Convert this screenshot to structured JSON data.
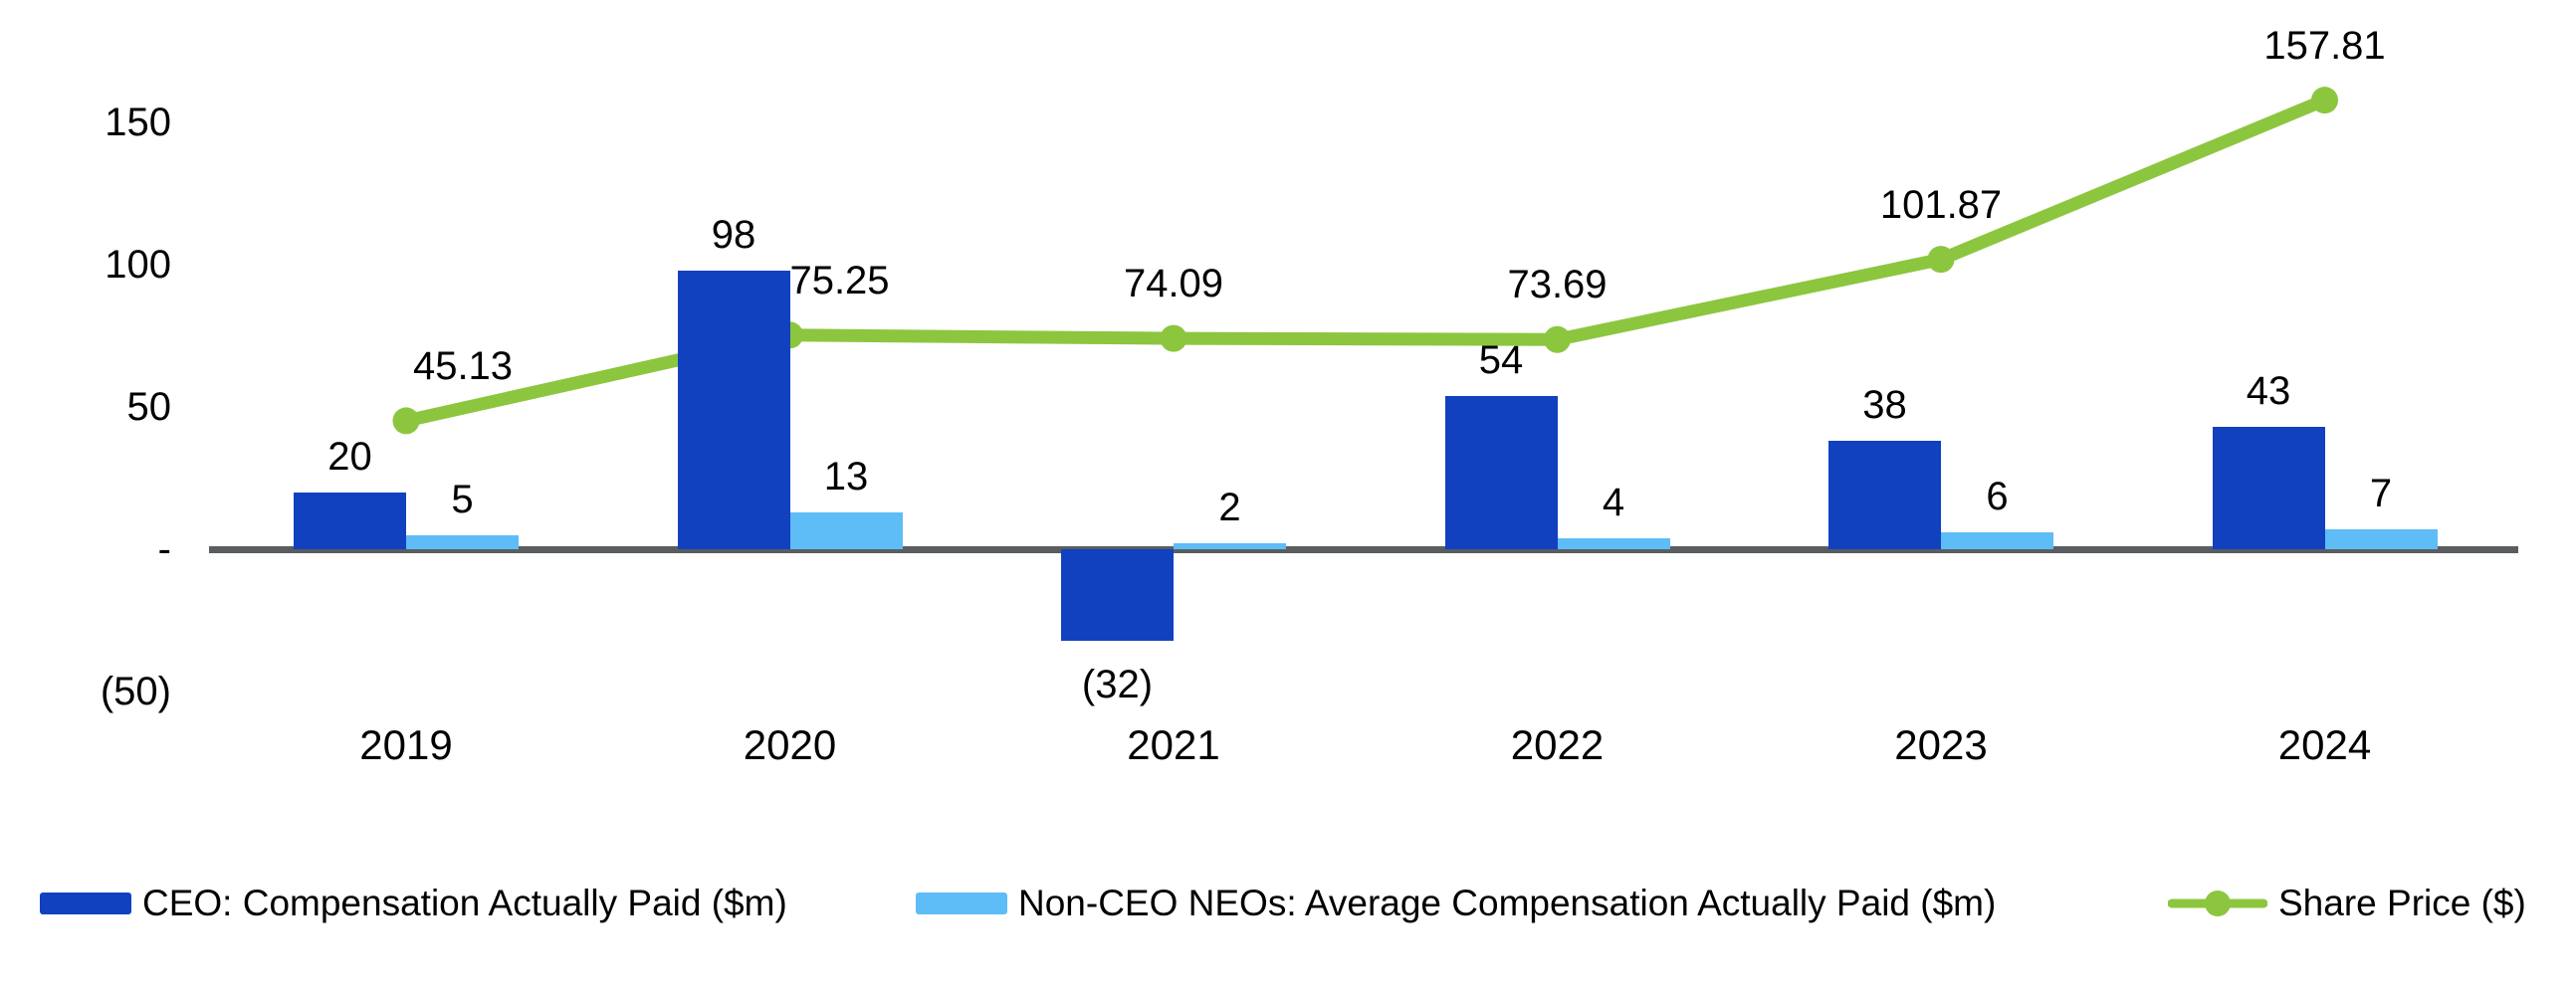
{
  "chart_data": {
    "type": "bar+line combo",
    "title": "",
    "categories": [
      "2019",
      "2020",
      "2021",
      "2022",
      "2023",
      "2024"
    ],
    "series": [
      {
        "name": "CEO: Compensation Actually Paid ($m)",
        "type": "bar",
        "color": "#1241C0",
        "values": [
          20,
          98,
          -32,
          54,
          38,
          43
        ],
        "labels": [
          "20",
          "98",
          "(32)",
          "54",
          "38",
          "43"
        ]
      },
      {
        "name": "Non-CEO NEOs: Average Compensation Actually Paid ($m)",
        "type": "bar",
        "color": "#5EBCF6",
        "values": [
          5,
          13,
          2,
          4,
          6,
          7
        ],
        "labels": [
          "5",
          "13",
          "2",
          "4",
          "6",
          "7"
        ]
      },
      {
        "name": "Share Price ($)",
        "type": "line",
        "color": "#8CC63F",
        "values": [
          45.13,
          75.25,
          74.09,
          73.69,
          101.87,
          157.81
        ],
        "labels": [
          "45.13",
          "75.25",
          "74.09",
          "73.69",
          "101.87",
          "157.81"
        ]
      }
    ],
    "y_axis": {
      "ticks": [
        {
          "label": "150",
          "value": 150
        },
        {
          "label": "100",
          "value": 100
        },
        {
          "label": "50",
          "value": 50
        },
        {
          "label": "-",
          "value": 0
        },
        {
          "label": "(50)",
          "value": -50
        }
      ],
      "range_visible": [
        -75,
        175
      ],
      "gridlines": false
    },
    "axis_color": "#595D60",
    "legend_position": "bottom",
    "background": "#FFFFFF"
  }
}
